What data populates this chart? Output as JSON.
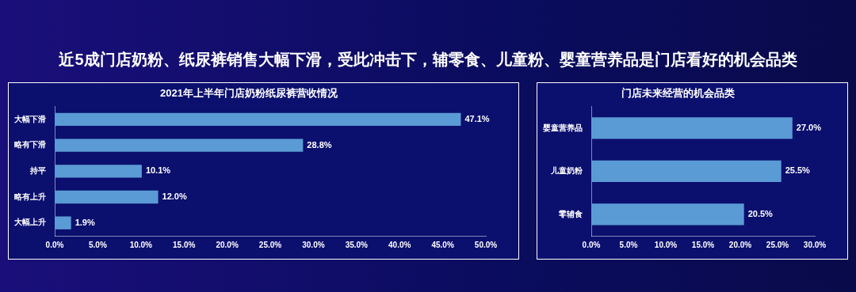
{
  "chart_data": [
    {
      "type": "other",
      "title": "近5成门店奶粉、纸尿裤销售大幅下滑，受此冲击下，辅零食、儿童粉、婴童营养品是门店看好的机会品类"
    },
    {
      "type": "bar",
      "orientation": "horizontal",
      "title": "2021年上半年门店奶粉纸尿裤营收情况",
      "categories": [
        "大幅下滑",
        "略有下滑",
        "持平",
        "略有上升",
        "大幅上升"
      ],
      "values": [
        47.1,
        28.8,
        10.1,
        12.0,
        1.9
      ],
      "value_labels": [
        "47.1%",
        "28.8%",
        "10.1%",
        "12.0%",
        "1.9%"
      ],
      "color": "#5b9bd5",
      "xlim": [
        0,
        50
      ],
      "xticks": [
        {
          "value": 0,
          "label": "0.0%"
        },
        {
          "value": 5,
          "label": "5.0%"
        },
        {
          "value": 10,
          "label": "10.0%"
        },
        {
          "value": 15,
          "label": "15.0%"
        },
        {
          "value": 20,
          "label": "20.0%"
        },
        {
          "value": 25,
          "label": "25.0%"
        },
        {
          "value": 30,
          "label": "30.0%"
        },
        {
          "value": 35,
          "label": "35.0%"
        },
        {
          "value": 40,
          "label": "40.0%"
        },
        {
          "value": 45,
          "label": "45.0%"
        },
        {
          "value": 50,
          "label": "50.0%"
        }
      ]
    },
    {
      "type": "bar",
      "orientation": "horizontal",
      "title": "门店未来经营的机会品类",
      "categories": [
        "婴童营养品",
        "儿童奶粉",
        "零辅食"
      ],
      "values": [
        27.0,
        25.5,
        20.5
      ],
      "value_labels": [
        "27.0%",
        "25.5%",
        "20.5%"
      ],
      "color": "#5b9bd5",
      "xlim": [
        0,
        30
      ],
      "xticks": [
        {
          "value": 0,
          "label": "0.0%"
        },
        {
          "value": 5,
          "label": "5.0%"
        },
        {
          "value": 10,
          "label": "10.0%"
        },
        {
          "value": 15,
          "label": "15.0%"
        },
        {
          "value": 20,
          "label": "20.0%"
        },
        {
          "value": 25,
          "label": "25.0%"
        },
        {
          "value": 30,
          "label": "30.0%"
        }
      ]
    }
  ]
}
